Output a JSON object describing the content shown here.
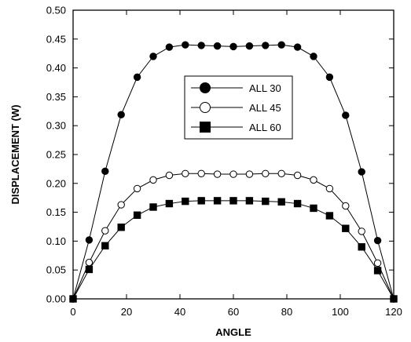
{
  "chart_data": {
    "type": "line",
    "title": "",
    "xlabel": "ANGLE",
    "ylabel": "DISPLACEMENT (W)",
    "xlim": [
      0,
      120
    ],
    "ylim": [
      0,
      0.5
    ],
    "xticks": [
      "0",
      "20",
      "40",
      "60",
      "80",
      "100",
      "120"
    ],
    "yticks": [
      "0.00",
      "0.05",
      "0.10",
      "0.15",
      "0.20",
      "0.25",
      "0.30",
      "0.35",
      "0.40",
      "0.45",
      "0.50"
    ],
    "grid": false,
    "legend_position": "center",
    "x": [
      0,
      6,
      12,
      18,
      24,
      30,
      36,
      42,
      48,
      54,
      60,
      66,
      72,
      78,
      84,
      90,
      96,
      102,
      108,
      114,
      120
    ],
    "series": [
      {
        "name": "ALL 30",
        "marker": "filled-circle",
        "values": [
          0.0,
          0.102,
          0.221,
          0.319,
          0.384,
          0.42,
          0.436,
          0.44,
          0.439,
          0.438,
          0.437,
          0.438,
          0.439,
          0.44,
          0.436,
          0.42,
          0.384,
          0.318,
          0.22,
          0.101,
          0.0
        ]
      },
      {
        "name": "ALL 45",
        "marker": "open-circle",
        "values": [
          0.0,
          0.063,
          0.118,
          0.163,
          0.191,
          0.206,
          0.214,
          0.217,
          0.217,
          0.216,
          0.216,
          0.216,
          0.217,
          0.217,
          0.214,
          0.206,
          0.191,
          0.161,
          0.117,
          0.062,
          0.0
        ]
      },
      {
        "name": "ALL 60",
        "marker": "filled-square",
        "values": [
          0.0,
          0.051,
          0.092,
          0.124,
          0.145,
          0.159,
          0.165,
          0.169,
          0.17,
          0.17,
          0.17,
          0.17,
          0.169,
          0.168,
          0.165,
          0.157,
          0.144,
          0.122,
          0.09,
          0.049,
          0.0
        ]
      }
    ]
  }
}
